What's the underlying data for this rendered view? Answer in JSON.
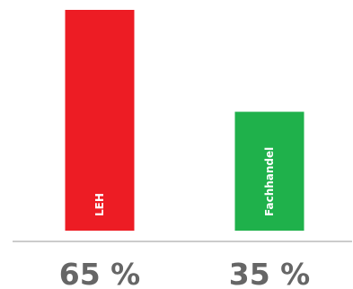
{
  "chart_data": {
    "type": "bar",
    "categories": [
      "LEH",
      "Fachhandel"
    ],
    "values": [
      65,
      35
    ],
    "value_labels": [
      "65 %",
      "35 %"
    ],
    "colors": [
      "#ed1c24",
      "#1fb14b"
    ],
    "ylim": [
      0,
      65
    ],
    "grid": false,
    "legend": "none"
  }
}
